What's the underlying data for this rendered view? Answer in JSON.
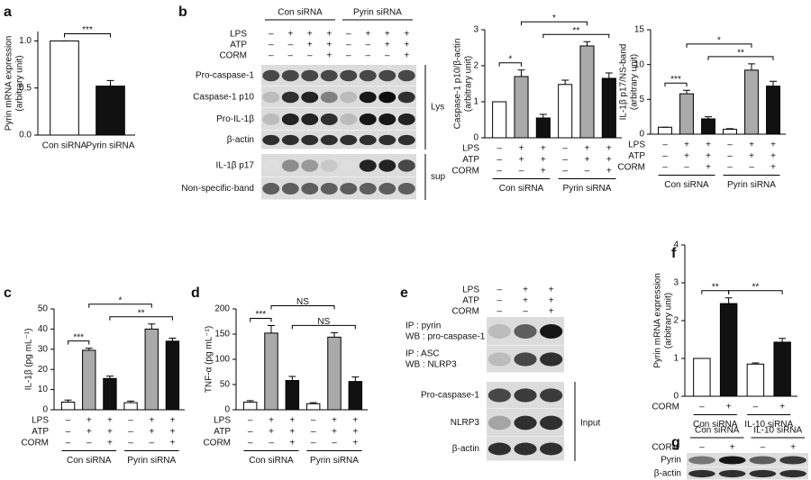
{
  "panel_labels": [
    "a",
    "b",
    "c",
    "d",
    "e",
    "f",
    "g"
  ],
  "chart_data": [
    {
      "type": "bar",
      "ylabel": [
        "Pyrin mRNA expression",
        "(arbitrary unit)"
      ],
      "categories": [
        "Con siRNA",
        "Pyrin siRNA"
      ],
      "values": [
        1.0,
        0.52
      ],
      "errors": [
        0,
        0.06
      ],
      "colors": [
        "#ffffff",
        "#111111"
      ],
      "ylim": [
        0,
        1.1
      ],
      "yticks": [
        {
          "value": 0,
          "label": "0.0"
        },
        0.5,
        {
          "value": 1,
          "label": "1.0"
        }
      ],
      "annotations": [
        "***"
      ]
    },
    {
      "type": "bar",
      "ylabel": [
        "Caspase-1 p10/β-actin",
        "(arbitrary unit)"
      ],
      "values": [
        1.0,
        1.7,
        0.55,
        1.48,
        2.55,
        1.65
      ],
      "errors": [
        0,
        0.18,
        0.1,
        0.12,
        0.12,
        0.15
      ],
      "colors": [
        "#ffffff",
        "#aaaaaa",
        "#111111",
        "#ffffff",
        "#aaaaaa",
        "#111111"
      ],
      "ylim": [
        0,
        3
      ],
      "yticks": [
        0,
        1,
        2,
        3
      ],
      "treatments": [
        {
          "label": "LPS",
          "marks": [
            "–",
            "+",
            "+",
            "–",
            "+",
            "+"
          ]
        },
        {
          "label": "ATP",
          "marks": [
            "–",
            "+",
            "+",
            "–",
            "+",
            "+"
          ]
        },
        {
          "label": "CORM",
          "marks": [
            "–",
            "–",
            "+",
            "–",
            "–",
            "+"
          ]
        }
      ],
      "groups": [
        "Con siRNA",
        "Pyrin siRNA"
      ],
      "annotations": [
        "*",
        "*",
        "**"
      ]
    },
    {
      "type": "bar",
      "ylabel": [
        "IL-1β p17/NS-band",
        "(arbitrary unit)"
      ],
      "values": [
        1.0,
        5.8,
        2.2,
        0.7,
        9.2,
        6.9
      ],
      "errors": [
        0,
        0.5,
        0.3,
        0.1,
        0.9,
        0.7
      ],
      "colors": [
        "#ffffff",
        "#aaaaaa",
        "#111111",
        "#ffffff",
        "#aaaaaa",
        "#111111"
      ],
      "ylim": [
        0,
        15
      ],
      "yticks": [
        0,
        5,
        10,
        15
      ],
      "treatments": [
        {
          "label": "LPS",
          "marks": [
            "–",
            "+",
            "+",
            "–",
            "+",
            "+"
          ]
        },
        {
          "label": "ATP",
          "marks": [
            "–",
            "+",
            "+",
            "–",
            "+",
            "+"
          ]
        },
        {
          "label": "CORM",
          "marks": [
            "–",
            "–",
            "+",
            "–",
            "–",
            "+"
          ]
        }
      ],
      "groups": [
        "Con siRNA",
        "Pyrin siRNA"
      ],
      "annotations": [
        "***",
        "*",
        "**"
      ]
    },
    {
      "type": "bar",
      "ylabel": [
        "IL-1β (pg mL⁻¹)"
      ],
      "values": [
        3.8,
        29.5,
        15.5,
        3.5,
        40,
        34
      ],
      "errors": [
        1,
        1,
        1.2,
        0.8,
        2.5,
        1.5
      ],
      "colors": [
        "#ffffff",
        "#aaaaaa",
        "#111111",
        "#ffffff",
        "#aaaaaa",
        "#111111"
      ],
      "ylim": [
        0,
        50
      ],
      "yticks": [
        0,
        10,
        20,
        30,
        40,
        50
      ],
      "treatments": [
        {
          "label": "LPS",
          "marks": [
            "–",
            "+",
            "+",
            "–",
            "+",
            "+"
          ]
        },
        {
          "label": "ATP",
          "marks": [
            "–",
            "+",
            "+",
            "–",
            "+",
            "+"
          ]
        },
        {
          "label": "CORM",
          "marks": [
            "–",
            "–",
            "+",
            "–",
            "–",
            "+"
          ]
        }
      ],
      "groups": [
        "Con siRNA",
        "Pyrin siRNA"
      ],
      "annotations": [
        "***",
        "*",
        "**"
      ]
    },
    {
      "type": "bar",
      "ylabel": [
        "TNF-α (pg mL⁻¹)"
      ],
      "values": [
        15,
        152,
        58,
        12,
        144,
        56
      ],
      "errors": [
        3,
        15,
        8,
        2,
        9,
        9
      ],
      "colors": [
        "#ffffff",
        "#aaaaaa",
        "#111111",
        "#ffffff",
        "#aaaaaa",
        "#111111"
      ],
      "ylim": [
        0,
        200
      ],
      "yticks": [
        0,
        50,
        100,
        150,
        200
      ],
      "treatments": [
        {
          "label": "LPS",
          "marks": [
            "–",
            "+",
            "+",
            "–",
            "+",
            "+"
          ]
        },
        {
          "label": "ATP",
          "marks": [
            "–",
            "+",
            "+",
            "–",
            "+",
            "+"
          ]
        },
        {
          "label": "CORM",
          "marks": [
            "–",
            "–",
            "+",
            "–",
            "–",
            "+"
          ]
        }
      ],
      "groups": [
        "Con siRNA",
        "Pyrin siRNA"
      ],
      "annotations": [
        "***",
        "NS",
        "NS"
      ]
    },
    {
      "type": "bar",
      "ylabel": [
        "Pyrin mRNA expression",
        "(arbitrary unit)"
      ],
      "values": [
        1.0,
        2.45,
        0.85,
        1.43
      ],
      "errors": [
        0,
        0.15,
        0.03,
        0.1
      ],
      "colors": [
        "#ffffff",
        "#111111",
        "#ffffff",
        "#111111"
      ],
      "ylim": [
        0,
        4
      ],
      "yticks": [
        0,
        1,
        2,
        3,
        4
      ],
      "treatments": [
        {
          "label": "CORM",
          "marks": [
            "–",
            "+",
            "–",
            "+"
          ]
        }
      ],
      "groups": [
        "Con siRNA",
        "IL-10 siRNA"
      ],
      "annotations": [
        "**",
        "**"
      ]
    }
  ],
  "blots": [
    {
      "groups": [
        "Con siRNA",
        "Pyrin siRNA"
      ],
      "treatments": [
        {
          "label": "LPS",
          "marks": [
            "–",
            "+",
            "+",
            "+",
            "–",
            "+",
            "+",
            "+"
          ]
        },
        {
          "label": "ATP",
          "marks": [
            "–",
            "–",
            "+",
            "+",
            "–",
            "–",
            "+",
            "+"
          ]
        },
        {
          "label": "CORM",
          "marks": [
            "–",
            "–",
            "–",
            "+",
            "–",
            "–",
            "–",
            "+"
          ]
        }
      ],
      "bands": [
        "Pro-caspase-1",
        "Caspase-1 p10",
        "Pro-IL-1β",
        "β-actin",
        "IL-1β p17",
        "Non-specific-band"
      ],
      "sections": [
        "Lys",
        "sup"
      ]
    },
    {
      "treatments": [
        {
          "label": "LPS",
          "marks": [
            "–",
            "+",
            "+"
          ]
        },
        {
          "label": "ATP",
          "marks": [
            "–",
            "+",
            "+"
          ]
        },
        {
          "label": "CORM",
          "marks": [
            "–",
            "–",
            "+"
          ]
        }
      ],
      "ip_rows": [
        "IP : pyrin",
        "WB : pro-caspase-1",
        "IP : ASC",
        "WB : NLRP3"
      ],
      "bands": [
        "Pro-caspase-1",
        "NLRP3",
        "β-actin"
      ],
      "sections": [
        "Input"
      ]
    },
    {
      "groups": [
        "Con siRNA",
        "IL-10 siRNA"
      ],
      "treatments": [
        {
          "label": "CORM",
          "marks": [
            "–",
            "+",
            "–",
            "+"
          ]
        }
      ],
      "bands": [
        "Pyrin",
        "β-actin"
      ]
    }
  ]
}
